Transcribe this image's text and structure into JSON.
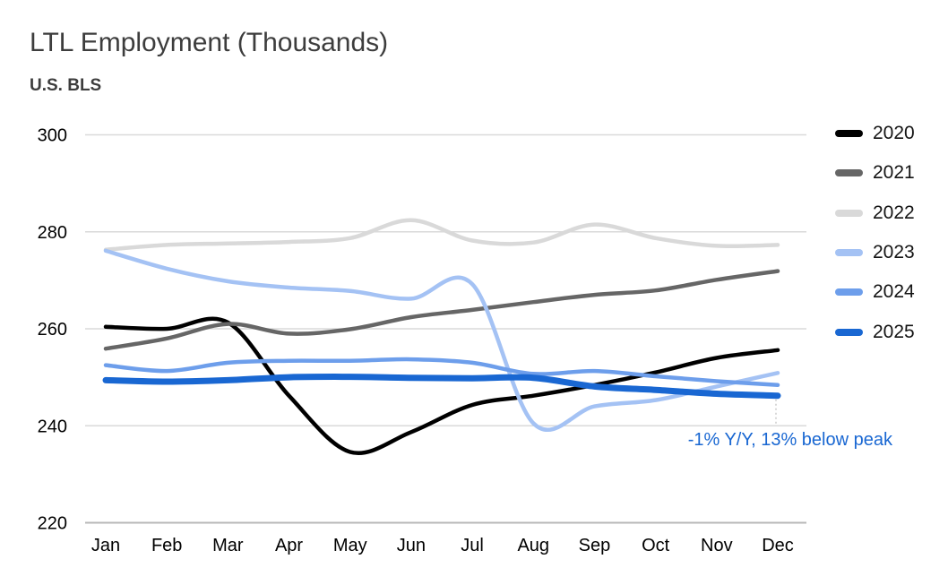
{
  "header": {
    "title": "LTL Employment (Thousands)",
    "subtitle": "U.S. BLS"
  },
  "chart_data": {
    "type": "line",
    "title": "LTL Employment (Thousands)",
    "subtitle": "U.S. BLS",
    "smooth": true,
    "grid": "horizontal",
    "legend_position": "right",
    "x_categories": [
      "Jan",
      "Feb",
      "Mar",
      "Apr",
      "May",
      "Jun",
      "Jul",
      "Aug",
      "Sep",
      "Oct",
      "Nov",
      "Dec"
    ],
    "ylim": [
      220,
      300
    ],
    "y_ticks": [
      220,
      240,
      260,
      280,
      300
    ],
    "axis_label_color": "#000000",
    "gridline_color": "#dadada",
    "baseline_color": "#b7b7b7",
    "series": [
      {
        "name": "2020",
        "color": "#000000",
        "width": 4.5,
        "values": [
          260.4,
          260.0,
          261.3,
          246.2,
          234.6,
          238.7,
          244.3,
          246.2,
          248.4,
          251.0,
          254.0,
          255.6
        ]
      },
      {
        "name": "2021",
        "color": "#666666",
        "width": 4.5,
        "values": [
          255.9,
          258.0,
          261.0,
          259.0,
          259.9,
          262.4,
          263.9,
          265.5,
          267.0,
          267.9,
          270.1,
          271.9
        ]
      },
      {
        "name": "2022",
        "color": "#d9d9d9",
        "width": 4.5,
        "values": [
          276.3,
          277.3,
          277.6,
          277.9,
          278.7,
          282.4,
          278.2,
          277.8,
          281.5,
          278.7,
          277.1,
          277.3
        ]
      },
      {
        "name": "2023",
        "color": "#a4c2f4",
        "width": 4.5,
        "values": [
          276.1,
          272.4,
          269.8,
          268.5,
          267.8,
          266.2,
          269.2,
          240.5,
          244.0,
          245.3,
          248.1,
          250.9
        ]
      },
      {
        "name": "2024",
        "color": "#6d9eeb",
        "width": 4.5,
        "values": [
          252.5,
          251.3,
          253.0,
          253.4,
          253.4,
          253.7,
          253.0,
          250.7,
          251.3,
          250.2,
          249.2,
          248.4
        ]
      },
      {
        "name": "2025",
        "color": "#1967d2",
        "width": 7,
        "values": [
          249.4,
          249.1,
          249.4,
          250.0,
          250.1,
          249.9,
          249.8,
          249.9,
          248.1,
          247.4,
          246.6,
          246.2
        ]
      }
    ],
    "annotation": {
      "text": "-1% Y/Y, 13% below peak",
      "color": "#1967d2"
    }
  }
}
